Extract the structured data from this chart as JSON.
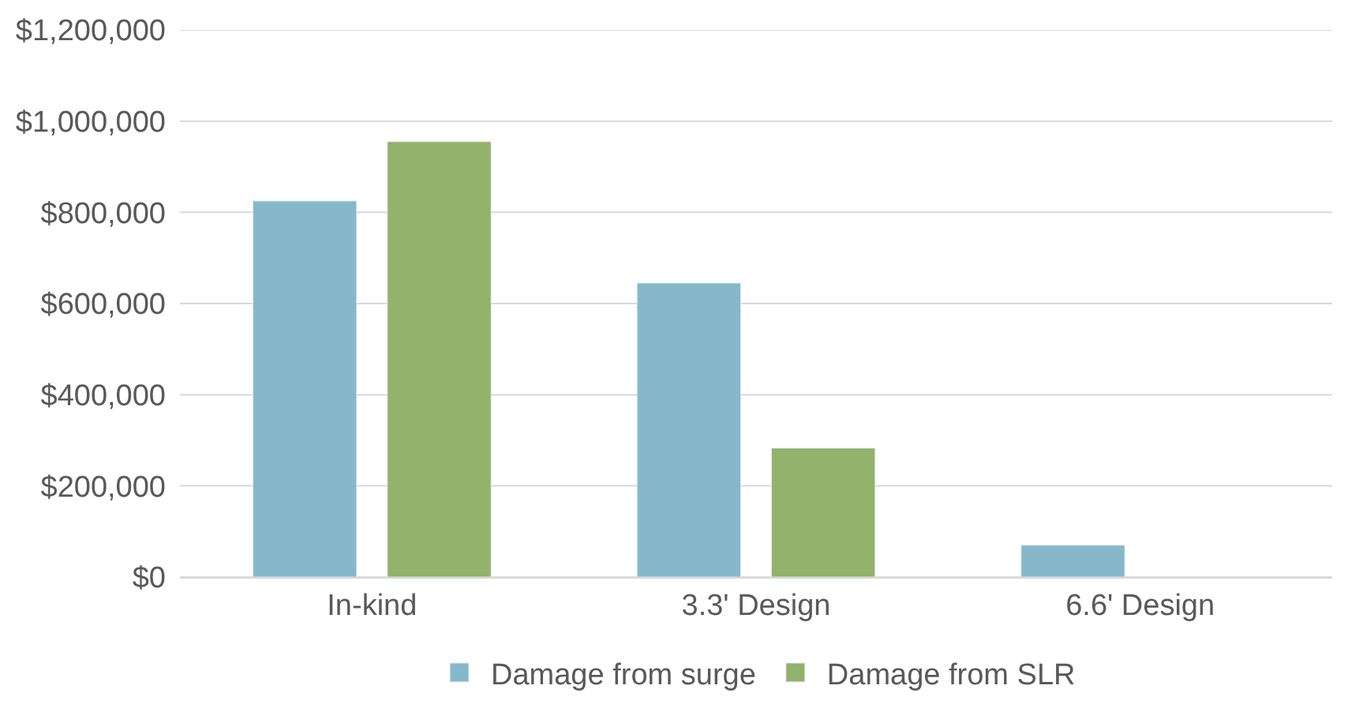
{
  "chart_data": {
    "type": "bar",
    "categories": [
      "In-kind",
      "3.3' Design",
      "6.6' Design"
    ],
    "series": [
      {
        "name": "Damage from surge",
        "color": "#86b8ca",
        "values": [
          825000,
          645000,
          70000
        ]
      },
      {
        "name": "Damage from SLR",
        "color": "#93b26b",
        "values": [
          955000,
          283000,
          null
        ]
      }
    ],
    "ylim": [
      0,
      1200000
    ],
    "yticks": [
      {
        "value": 0,
        "label": "$0"
      },
      {
        "value": 200000,
        "label": "$200,000"
      },
      {
        "value": 400000,
        "label": "$400,000"
      },
      {
        "value": 600000,
        "label": "$600,000"
      },
      {
        "value": 800000,
        "label": "$800,000"
      },
      {
        "value": 1000000,
        "label": "$1,000,000"
      },
      {
        "value": 1200000,
        "label": "$1,200,000"
      }
    ],
    "grid": "y",
    "legend": "bottom"
  }
}
